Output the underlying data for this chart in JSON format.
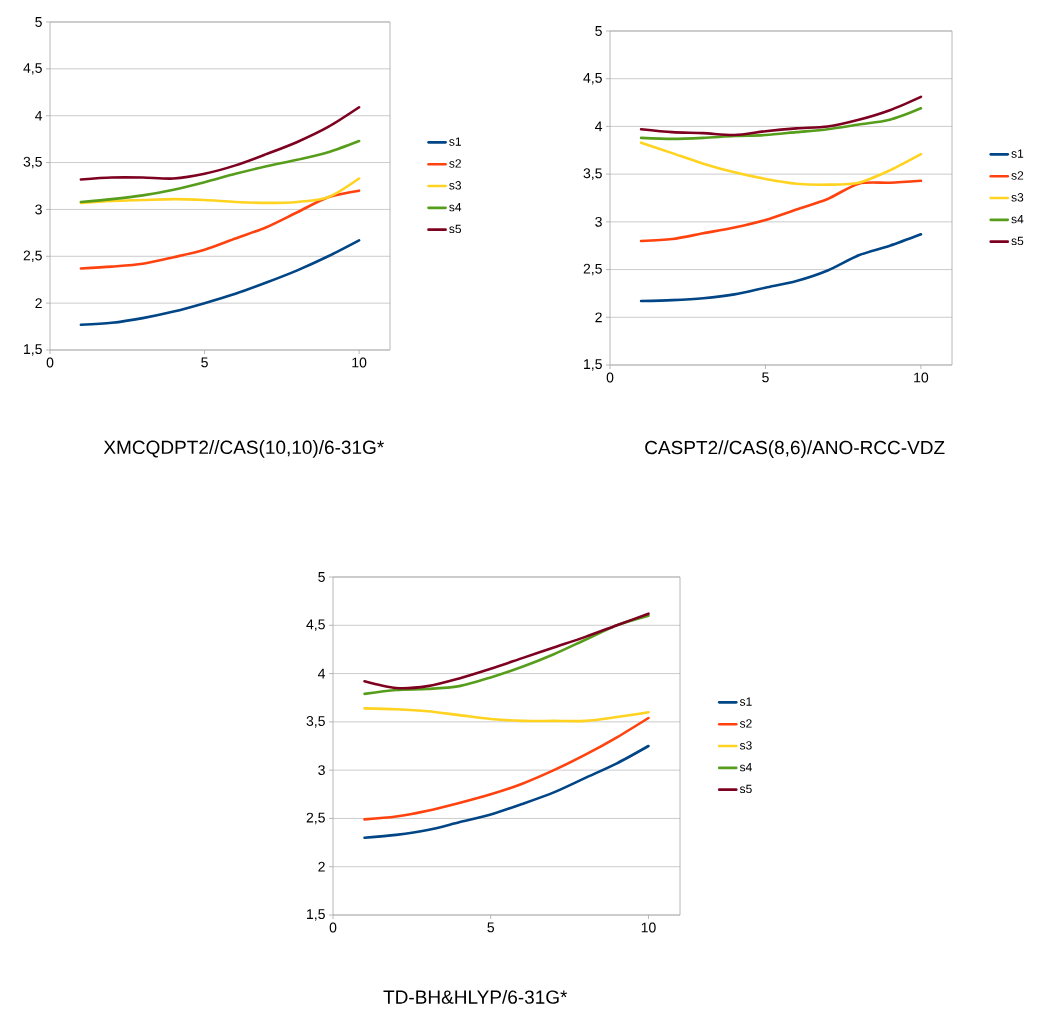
{
  "chart_data": [
    {
      "type": "line",
      "title": "XMCQDPT2//CAS(10,10)/6-31G*",
      "xlim": [
        0,
        11
      ],
      "xticks": [
        0,
        5,
        10
      ],
      "ylim": [
        1.5,
        5
      ],
      "yticks": [
        {
          "value": 1.5,
          "label": "1,5"
        },
        2,
        {
          "value": 2.5,
          "label": "2,5"
        },
        3,
        {
          "value": 3.5,
          "label": "3,5"
        },
        4,
        {
          "value": 4.5,
          "label": "4,5"
        },
        5
      ],
      "grid": "y",
      "legend": "right",
      "marker": "none",
      "line_style": "solid",
      "x": [
        1,
        2,
        3,
        4,
        5,
        6,
        7,
        8,
        9,
        10
      ],
      "series": [
        {
          "name": "s1",
          "color": "#004586",
          "values": [
            1.77,
            1.79,
            1.84,
            1.91,
            2.0,
            2.1,
            2.22,
            2.35,
            2.5,
            2.67
          ]
        },
        {
          "name": "s2",
          "color": "#ff420e",
          "values": [
            2.37,
            2.39,
            2.42,
            2.49,
            2.57,
            2.69,
            2.81,
            2.97,
            3.13,
            3.2
          ]
        },
        {
          "name": "s3",
          "color": "#ffd320",
          "values": [
            3.07,
            3.09,
            3.1,
            3.11,
            3.1,
            3.08,
            3.07,
            3.08,
            3.13,
            3.33
          ]
        },
        {
          "name": "s4",
          "color": "#579d1c",
          "values": [
            3.08,
            3.11,
            3.15,
            3.21,
            3.29,
            3.38,
            3.46,
            3.53,
            3.61,
            3.73
          ]
        },
        {
          "name": "s5",
          "color": "#7e0021",
          "values": [
            3.32,
            3.34,
            3.34,
            3.33,
            3.38,
            3.47,
            3.59,
            3.72,
            3.88,
            4.09
          ]
        }
      ]
    },
    {
      "type": "line",
      "title": "CASPT2//CAS(8,6)/ANO-RCC-VDZ",
      "xlim": [
        0,
        11
      ],
      "xticks": [
        0,
        5,
        10
      ],
      "ylim": [
        1.5,
        5
      ],
      "yticks": [
        {
          "value": 1.5,
          "label": "1,5"
        },
        2,
        {
          "value": 2.5,
          "label": "2,5"
        },
        3,
        {
          "value": 3.5,
          "label": "3,5"
        },
        4,
        {
          "value": 4.5,
          "label": "4,5"
        },
        5
      ],
      "grid": "y",
      "legend": "right",
      "marker": "none",
      "line_style": "solid",
      "x": [
        1,
        2,
        3,
        4,
        5,
        6,
        7,
        8,
        9,
        10
      ],
      "series": [
        {
          "name": "s1",
          "color": "#004586",
          "values": [
            2.17,
            2.18,
            2.2,
            2.24,
            2.31,
            2.38,
            2.49,
            2.65,
            2.75,
            2.87
          ]
        },
        {
          "name": "s2",
          "color": "#ff420e",
          "values": [
            2.8,
            2.82,
            2.88,
            2.94,
            3.02,
            3.13,
            3.24,
            3.4,
            3.41,
            3.43
          ]
        },
        {
          "name": "s3",
          "color": "#ffd320",
          "values": [
            3.83,
            3.72,
            3.61,
            3.52,
            3.45,
            3.4,
            3.39,
            3.41,
            3.54,
            3.71
          ]
        },
        {
          "name": "s4",
          "color": "#579d1c",
          "values": [
            3.88,
            3.87,
            3.88,
            3.9,
            3.91,
            3.94,
            3.97,
            4.02,
            4.07,
            4.19
          ]
        },
        {
          "name": "s5",
          "color": "#7e0021",
          "values": [
            3.97,
            3.94,
            3.93,
            3.91,
            3.95,
            3.98,
            4.0,
            4.07,
            4.17,
            4.31
          ]
        }
      ]
    },
    {
      "type": "line",
      "title": "TD-BH&HLYP/6-31G*",
      "xlim": [
        0,
        11
      ],
      "xticks": [
        0,
        5,
        10
      ],
      "ylim": [
        1.5,
        5
      ],
      "yticks": [
        {
          "value": 1.5,
          "label": "1,5"
        },
        2,
        {
          "value": 2.5,
          "label": "2,5"
        },
        3,
        {
          "value": 3.5,
          "label": "3,5"
        },
        4,
        {
          "value": 4.5,
          "label": "4,5"
        },
        5
      ],
      "grid": "y",
      "legend": "right",
      "marker": "none",
      "line_style": "solid",
      "x": [
        1,
        2,
        3,
        4,
        5,
        6,
        7,
        8,
        9,
        10
      ],
      "series": [
        {
          "name": "s1",
          "color": "#004586",
          "values": [
            2.3,
            2.33,
            2.38,
            2.46,
            2.54,
            2.65,
            2.77,
            2.92,
            3.07,
            3.25
          ]
        },
        {
          "name": "s2",
          "color": "#ff420e",
          "values": [
            2.49,
            2.52,
            2.58,
            2.66,
            2.75,
            2.86,
            3.0,
            3.16,
            3.34,
            3.54
          ]
        },
        {
          "name": "s3",
          "color": "#ffd320",
          "values": [
            3.64,
            3.63,
            3.61,
            3.57,
            3.53,
            3.51,
            3.51,
            3.51,
            3.55,
            3.6
          ]
        },
        {
          "name": "s4",
          "color": "#579d1c",
          "values": [
            3.79,
            3.83,
            3.84,
            3.87,
            3.96,
            4.07,
            4.2,
            4.35,
            4.5,
            4.6
          ]
        },
        {
          "name": "s5",
          "color": "#7e0021",
          "values": [
            3.92,
            3.85,
            3.87,
            3.95,
            4.05,
            4.16,
            4.27,
            4.38,
            4.5,
            4.62
          ]
        }
      ]
    }
  ]
}
